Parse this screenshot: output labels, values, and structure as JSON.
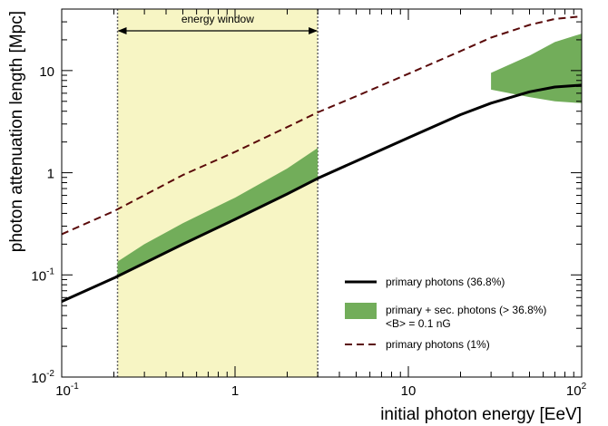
{
  "chart_data": {
    "type": "line",
    "title": "",
    "xlabel": "initial photon energy [EeV]",
    "ylabel": "photon attenuation length [Mpc]",
    "xscale": "log",
    "yscale": "log",
    "xlim": [
      0.1,
      100
    ],
    "ylim": [
      0.01,
      40
    ],
    "x_ticks": [
      {
        "value": 0.1,
        "base": "10",
        "exp": "-1"
      },
      {
        "value": 1,
        "base": "1",
        "exp": ""
      },
      {
        "value": 10,
        "base": "10",
        "exp": ""
      },
      {
        "value": 100,
        "base": "10",
        "exp": "2"
      }
    ],
    "y_ticks": [
      {
        "value": 0.01,
        "base": "10",
        "exp": "-2"
      },
      {
        "value": 0.1,
        "base": "10",
        "exp": "-1"
      },
      {
        "value": 1,
        "base": "1",
        "exp": ""
      },
      {
        "value": 10,
        "base": "10",
        "exp": ""
      }
    ],
    "energy_window": {
      "label": "energy window",
      "x_min": 0.21,
      "x_max": 3.0,
      "color": "#f7f5c4"
    },
    "series": [
      {
        "name": "primary photons (36.8%)",
        "style": "solid",
        "color": "#000000",
        "points": [
          [
            0.1,
            0.055
          ],
          [
            0.2,
            0.093
          ],
          [
            0.5,
            0.2
          ],
          [
            1,
            0.35
          ],
          [
            2,
            0.62
          ],
          [
            3,
            0.88
          ],
          [
            5,
            1.3
          ],
          [
            10,
            2.2
          ],
          [
            20,
            3.7
          ],
          [
            30,
            4.8
          ],
          [
            50,
            6.2
          ],
          [
            70,
            6.9
          ],
          [
            100,
            7.2
          ]
        ]
      },
      {
        "name": "primary photons (1%)",
        "style": "dashed",
        "color": "#5a0a0a",
        "points": [
          [
            0.1,
            0.25
          ],
          [
            0.2,
            0.42
          ],
          [
            0.5,
            0.95
          ],
          [
            1,
            1.6
          ],
          [
            2,
            2.8
          ],
          [
            3,
            3.9
          ],
          [
            5,
            5.6
          ],
          [
            10,
            9.3
          ],
          [
            20,
            15.5
          ],
          [
            30,
            21
          ],
          [
            50,
            28
          ],
          [
            70,
            32
          ],
          [
            100,
            34
          ]
        ]
      }
    ],
    "bands": [
      {
        "name": "primary + sec. photons (> 36.8%)",
        "sublabel": "<B> = 0.1 nG",
        "color": "#72ad5a",
        "segments": [
          {
            "upper": [
              [
                0.21,
                0.135
              ],
              [
                0.3,
                0.2
              ],
              [
                0.5,
                0.32
              ],
              [
                1,
                0.57
              ],
              [
                2,
                1.1
              ],
              [
                3,
                1.75
              ]
            ],
            "lower": [
              [
                3,
                0.88
              ],
              [
                2,
                0.62
              ],
              [
                1,
                0.35
              ],
              [
                0.5,
                0.2
              ],
              [
                0.3,
                0.13
              ],
              [
                0.21,
                0.097
              ]
            ]
          },
          {
            "upper": [
              [
                30,
                9.5
              ],
              [
                50,
                14
              ],
              [
                70,
                19
              ],
              [
                100,
                23
              ]
            ],
            "lower": [
              [
                100,
                4.8
              ],
              [
                70,
                5
              ],
              [
                50,
                5.5
              ],
              [
                30,
                6.5
              ]
            ]
          }
        ]
      }
    ]
  }
}
